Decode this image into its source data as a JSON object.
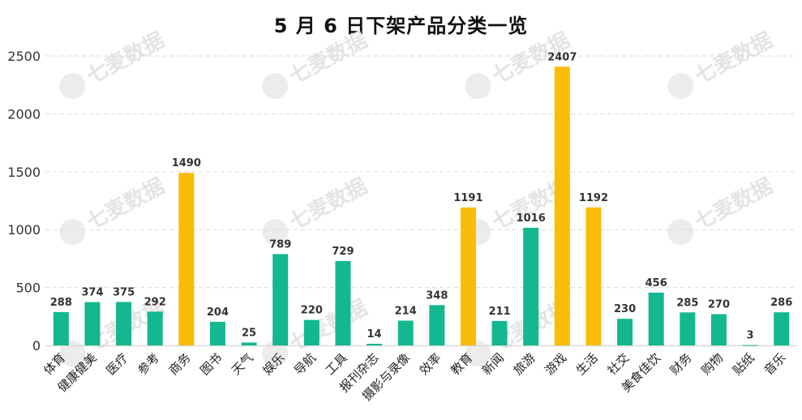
{
  "chart_data": {
    "type": "bar",
    "title": "5 月 6 日下架产品分类一览",
    "xlabel": "",
    "ylabel": "",
    "ylim": [
      0,
      2500
    ],
    "yticks": [
      0,
      500,
      1000,
      1500,
      2000,
      2500
    ],
    "grid": true,
    "categories": [
      "体育",
      "健康健美",
      "医疗",
      "参考",
      "商务",
      "图书",
      "天气",
      "娱乐",
      "导航",
      "工具",
      "报刊杂志",
      "摄影与录像",
      "效率",
      "教育",
      "新闻",
      "旅游",
      "游戏",
      "生活",
      "社交",
      "美食佳饮",
      "财务",
      "购物",
      "贴纸",
      "音乐"
    ],
    "values": [
      288,
      374,
      375,
      292,
      1490,
      204,
      25,
      789,
      220,
      729,
      14,
      214,
      348,
      1191,
      211,
      1016,
      2407,
      1192,
      230,
      456,
      285,
      270,
      3,
      286
    ],
    "highlighted": [
      "商务",
      "教育",
      "游戏",
      "生活"
    ],
    "colors": {
      "default": "#13b890",
      "highlight": "#fbbc05"
    }
  },
  "watermark": {
    "text": "七麦数据"
  }
}
